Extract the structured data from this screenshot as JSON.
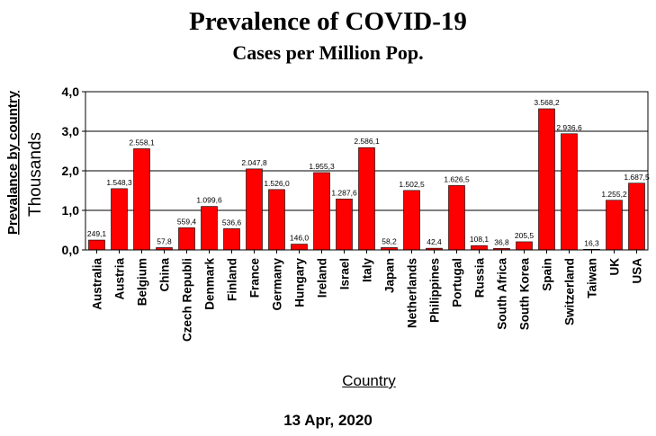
{
  "chart_data": {
    "type": "bar",
    "title": "Prevalence of COVID-19",
    "subtitle": "Cases per Million Pop.",
    "ylabel": "Prevalance by country",
    "ylabel_units": "Thousands",
    "xlabel": "Country",
    "footnote": "13 Apr, 2020",
    "ylim": [
      0,
      4
    ],
    "yticks": [
      "0,0",
      "1,0",
      "2,0",
      "3,0",
      "4,0"
    ],
    "grid": true,
    "bar_color": "#ff0000",
    "categories": [
      "Australia",
      "Austria",
      "Belgium",
      "China",
      "Czech Republi",
      "Denmark",
      "Finland",
      "France",
      "Germany",
      "Hungary",
      "Ireland",
      "Israel",
      "Italy",
      "Japan",
      "Netherlands",
      "Philippines",
      "Portugal",
      "Russia",
      "South Africa",
      "South Korea",
      "Spain",
      "Switzerland",
      "Taiwan",
      "UK",
      "USA"
    ],
    "values": [
      0.2491,
      1.5483,
      2.5581,
      0.0578,
      0.5594,
      1.0996,
      0.5366,
      2.0478,
      1.526,
      0.146,
      1.9553,
      1.2876,
      2.5861,
      0.0582,
      1.5025,
      0.0424,
      1.6265,
      0.1081,
      0.0368,
      0.2055,
      3.5682,
      2.9366,
      0.0163,
      1.2552,
      1.6875
    ],
    "data_labels": [
      "249,1",
      "1.548,3",
      "2.558,1",
      "57,8",
      "559,4",
      "1.099,6",
      "536,6",
      "2.047,8",
      "1.526,0",
      "146,0",
      "1.955,3",
      "1.287,6",
      "2.586,1",
      "58,2",
      "1.502,5",
      "42,4",
      "1.626,5",
      "108,1",
      "36,8",
      "205,5",
      "3.568,2",
      "2.936,6",
      "16,3",
      "1.255,2",
      "1.687,5"
    ]
  }
}
